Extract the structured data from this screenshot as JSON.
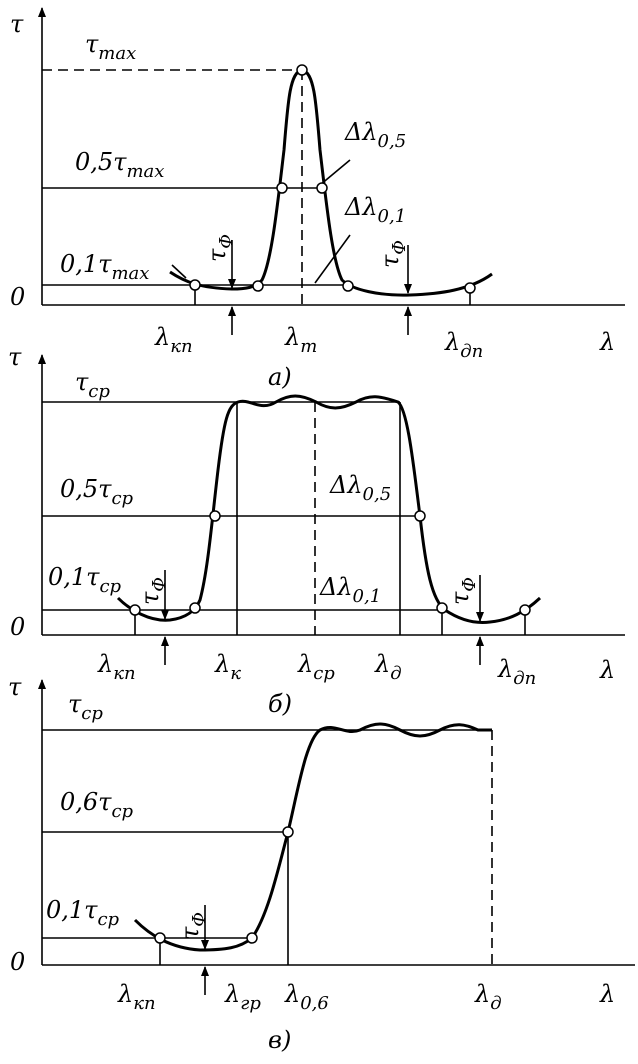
{
  "panels": [
    {
      "caption": "а)",
      "labels": [
        {
          "text": "τ"
        },
        {
          "text": "τ",
          "sub": "max"
        },
        {
          "text": "0,5τ",
          "sub": "max"
        },
        {
          "text": "0,1τ",
          "sub": "max"
        },
        {
          "text": "0"
        },
        {
          "text": "Δλ",
          "sub": "0,5"
        },
        {
          "text": "Δλ",
          "sub": "0,1"
        },
        {
          "text": "τ",
          "sub": "Φ"
        },
        {
          "text": "τ",
          "sub": "Φ"
        },
        {
          "text": "λ",
          "sub": "кп"
        },
        {
          "text": "λ",
          "sub": "m"
        },
        {
          "text": "λ",
          "sub": "дп"
        },
        {
          "text": "λ"
        }
      ]
    },
    {
      "caption": "б)",
      "labels": [
        {
          "text": "τ"
        },
        {
          "text": "τ",
          "sub": "ср"
        },
        {
          "text": "0,5τ",
          "sub": "ср"
        },
        {
          "text": "0,1τ",
          "sub": "ср"
        },
        {
          "text": "0"
        },
        {
          "text": "Δλ",
          "sub": "0,5"
        },
        {
          "text": "Δλ",
          "sub": "0,1"
        },
        {
          "text": "τ",
          "sub": "Φ"
        },
        {
          "text": "τ",
          "sub": "Φ"
        },
        {
          "text": "λ",
          "sub": "кп"
        },
        {
          "text": "λ",
          "sub": "к"
        },
        {
          "text": "λ",
          "sub": "ср"
        },
        {
          "text": "λ",
          "sub": "д"
        },
        {
          "text": "λ",
          "sub": "дп"
        },
        {
          "text": "λ"
        }
      ]
    },
    {
      "caption": "в)",
      "labels": [
        {
          "text": "τ"
        },
        {
          "text": "τ",
          "sub": "ср"
        },
        {
          "text": "0,6τ",
          "sub": "ср"
        },
        {
          "text": "0,1τ",
          "sub": "ср"
        },
        {
          "text": "0"
        },
        {
          "text": "τ",
          "sub": "Φ"
        },
        {
          "text": "λ",
          "sub": "кп"
        },
        {
          "text": "λ",
          "sub": "гр"
        },
        {
          "text": "λ",
          "sub": "0,6"
        },
        {
          "text": "λ",
          "sub": "д"
        },
        {
          "text": "λ"
        }
      ]
    }
  ]
}
